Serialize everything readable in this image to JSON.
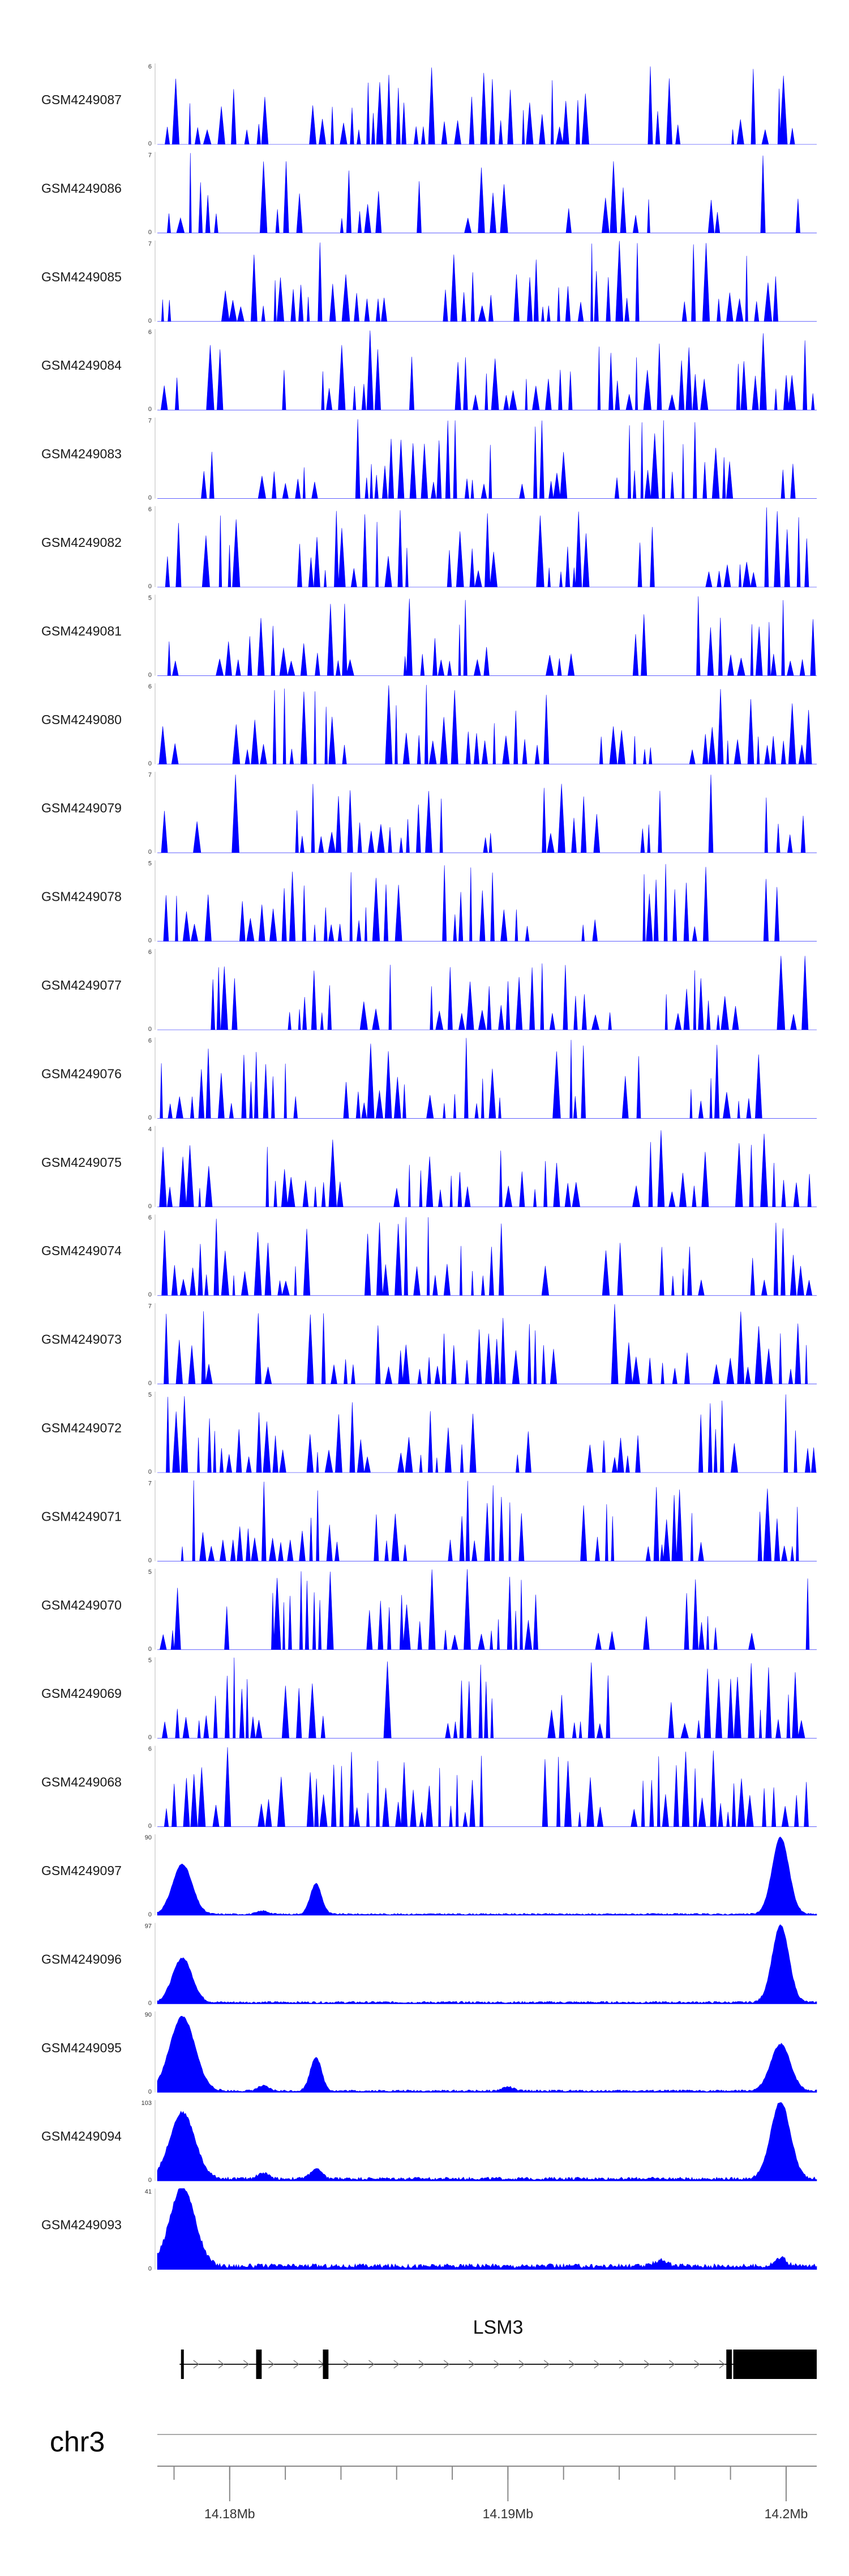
{
  "chart_data": {
    "type": "area",
    "accent_color": "#0000ff",
    "tracks": [
      {
        "name": "GSM4249087",
        "ymax": "6",
        "ymin": "0",
        "kind": "sparse",
        "seed": 87
      },
      {
        "name": "GSM4249086",
        "ymax": "7",
        "ymin": "0",
        "kind": "sparse",
        "seed": 86
      },
      {
        "name": "GSM4249085",
        "ymax": "7",
        "ymin": "0",
        "kind": "sparse",
        "seed": 85
      },
      {
        "name": "GSM4249084",
        "ymax": "6",
        "ymin": "0",
        "kind": "sparse",
        "seed": 84
      },
      {
        "name": "GSM4249083",
        "ymax": "7",
        "ymin": "0",
        "kind": "sparse",
        "seed": 83
      },
      {
        "name": "GSM4249082",
        "ymax": "6",
        "ymin": "0",
        "kind": "sparse",
        "seed": 82
      },
      {
        "name": "GSM4249081",
        "ymax": "5",
        "ymin": "0",
        "kind": "sparse",
        "seed": 81
      },
      {
        "name": "GSM4249080",
        "ymax": "6",
        "ymin": "0",
        "kind": "sparse",
        "seed": 80
      },
      {
        "name": "GSM4249079",
        "ymax": "7",
        "ymin": "0",
        "kind": "sparse",
        "seed": 79
      },
      {
        "name": "GSM4249078",
        "ymax": "5",
        "ymin": "0",
        "kind": "sparse",
        "seed": 78
      },
      {
        "name": "GSM4249077",
        "ymax": "6",
        "ymin": "0",
        "kind": "sparse",
        "seed": 77
      },
      {
        "name": "GSM4249076",
        "ymax": "6",
        "ymin": "0",
        "kind": "sparse",
        "seed": 76
      },
      {
        "name": "GSM4249075",
        "ymax": "4",
        "ymin": "0",
        "kind": "sparse",
        "seed": 75
      },
      {
        "name": "GSM4249074",
        "ymax": "6",
        "ymin": "0",
        "kind": "sparse",
        "seed": 74
      },
      {
        "name": "GSM4249073",
        "ymax": "7",
        "ymin": "0",
        "kind": "sparse",
        "seed": 73
      },
      {
        "name": "GSM4249072",
        "ymax": "5",
        "ymin": "0",
        "kind": "sparse",
        "seed": 72
      },
      {
        "name": "GSM4249071",
        "ymax": "7",
        "ymin": "0",
        "kind": "sparse",
        "seed": 71
      },
      {
        "name": "GSM4249070",
        "ymax": "5",
        "ymin": "0",
        "kind": "sparse",
        "seed": 70
      },
      {
        "name": "GSM4249069",
        "ymax": "5",
        "ymin": "0",
        "kind": "sparse",
        "seed": 69
      },
      {
        "name": "GSM4249068",
        "ymax": "6",
        "ymin": "0",
        "kind": "sparse",
        "seed": 68
      },
      {
        "name": "GSM4249097",
        "ymax": "90",
        "ymin": "0",
        "kind": "dense",
        "peaks": [
          {
            "x": 14.1783,
            "h": 0.62,
            "w": 0.00035
          },
          {
            "x": 14.1812,
            "h": 0.04,
            "w": 0.0002
          },
          {
            "x": 14.1831,
            "h": 0.38,
            "w": 0.0002
          },
          {
            "x": 14.1998,
            "h": 0.95,
            "w": 0.0003
          }
        ],
        "base": 0.015
      },
      {
        "name": "GSM4249096",
        "ymax": "97",
        "ymin": "0",
        "kind": "dense",
        "peaks": [
          {
            "x": 14.1783,
            "h": 0.55,
            "w": 0.00035
          },
          {
            "x": 14.1998,
            "h": 0.95,
            "w": 0.0003
          }
        ],
        "base": 0.02
      },
      {
        "name": "GSM4249095",
        "ymax": "90",
        "ymin": "0",
        "kind": "dense",
        "peaks": [
          {
            "x": 14.1783,
            "h": 0.92,
            "w": 0.00045
          },
          {
            "x": 14.1812,
            "h": 0.06,
            "w": 0.0002
          },
          {
            "x": 14.1831,
            "h": 0.42,
            "w": 0.0002
          },
          {
            "x": 14.19,
            "h": 0.05,
            "w": 0.0002
          },
          {
            "x": 14.1998,
            "h": 0.58,
            "w": 0.00035
          }
        ],
        "base": 0.02
      },
      {
        "name": "GSM4249094",
        "ymax": "103",
        "ymin": "0",
        "kind": "dense",
        "peaks": [
          {
            "x": 14.1783,
            "h": 0.82,
            "w": 0.00045
          },
          {
            "x": 14.1812,
            "h": 0.07,
            "w": 0.0002
          },
          {
            "x": 14.1831,
            "h": 0.12,
            "w": 0.0002
          },
          {
            "x": 14.1998,
            "h": 0.95,
            "w": 0.00035
          }
        ],
        "base": 0.03
      },
      {
        "name": "GSM4249093",
        "ymax": "41",
        "ymin": "0",
        "kind": "dense",
        "peaks": [
          {
            "x": 14.1783,
            "h": 0.98,
            "w": 0.00045
          },
          {
            "x": 14.1998,
            "h": 0.1,
            "w": 0.0002
          },
          {
            "x": 14.1955,
            "h": 0.08,
            "w": 0.0002
          }
        ],
        "base": 0.045
      }
    ],
    "x_range": [
      14.1774,
      14.2011
    ],
    "gene": {
      "name": "LSM3",
      "start": 14.1782,
      "end": 14.2011,
      "exons": [
        {
          "start": 14.17825,
          "end": 14.17835
        },
        {
          "start": 14.18095,
          "end": 14.18115
        },
        {
          "start": 14.18335,
          "end": 14.18355
        },
        {
          "start": 14.19785,
          "end": 14.19805
        },
        {
          "start": 14.1981,
          "end": 14.2011
        }
      ]
    },
    "chromosome": "chr3",
    "x_ticks": [
      {
        "value": 14.18,
        "label": "14.18Mb"
      },
      {
        "value": 14.19,
        "label": "14.19Mb"
      },
      {
        "value": 14.2,
        "label": "14.2Mb"
      }
    ],
    "x_minor_step": 0.002
  }
}
